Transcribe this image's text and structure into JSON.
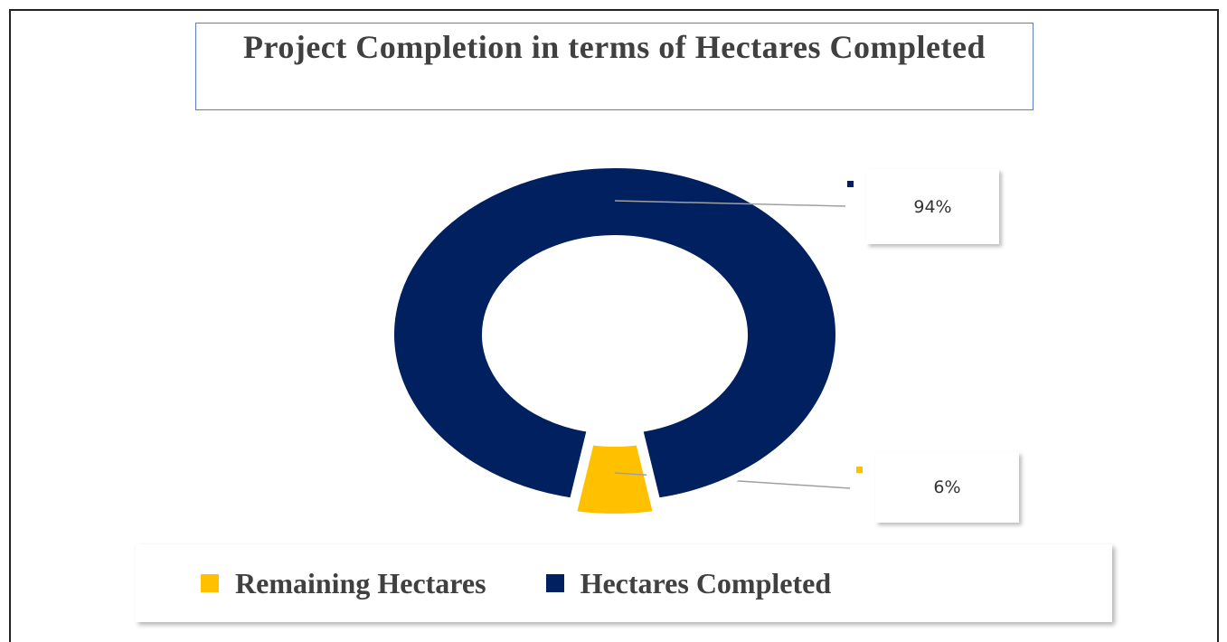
{
  "chart_data": {
    "type": "donut",
    "title": "Project Completion in terms of Hectares Completed",
    "categories": [
      "Remaining Hectares",
      "Hectares Completed"
    ],
    "series": [
      {
        "values": [
          6,
          94
        ],
        "value_labels": [
          "6%",
          "94%"
        ],
        "colors": [
          "#ffc000",
          "#002060"
        ]
      }
    ],
    "legend": "bottom"
  }
}
